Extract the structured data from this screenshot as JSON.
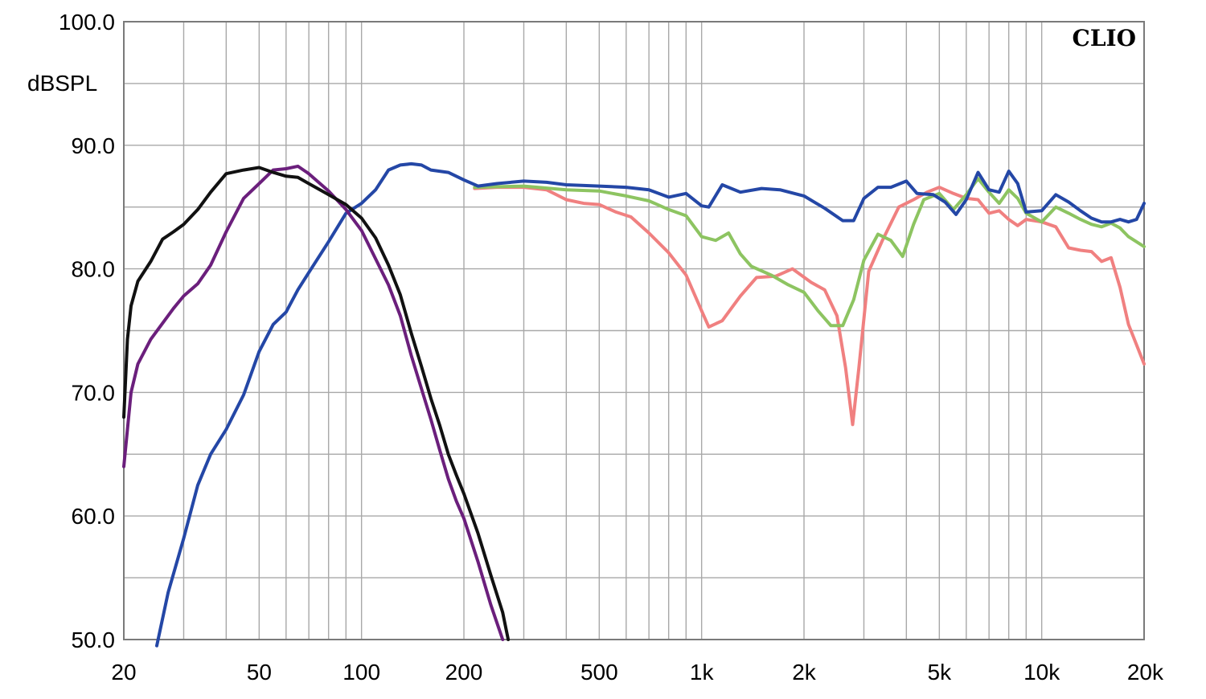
{
  "chart_data": {
    "type": "line",
    "title": "",
    "brand": "CLIO",
    "ylabel": "dBSPL",
    "xlabel": "",
    "x_scale": "log",
    "xlim": [
      20,
      20000
    ],
    "ylim": [
      50,
      100
    ],
    "grid": true,
    "legend": "none",
    "y_ticks": [
      {
        "value": 50,
        "label": "50.0"
      },
      {
        "value": 60,
        "label": "60.0"
      },
      {
        "value": 70,
        "label": "70.0"
      },
      {
        "value": 80,
        "label": "80.0"
      },
      {
        "value": 90,
        "label": "90.0"
      },
      {
        "value": 100,
        "label": "100.0"
      }
    ],
    "x_ticks": [
      {
        "value": 20,
        "label": "20"
      },
      {
        "value": 50,
        "label": "50"
      },
      {
        "value": 100,
        "label": "100"
      },
      {
        "value": 200,
        "label": "200"
      },
      {
        "value": 500,
        "label": "500"
      },
      {
        "value": 1000,
        "label": "1k"
      },
      {
        "value": 2000,
        "label": "2k"
      },
      {
        "value": 5000,
        "label": "5k"
      },
      {
        "value": 10000,
        "label": "10k"
      },
      {
        "value": 20000,
        "label": "20k"
      }
    ],
    "series": [
      {
        "color": "#f08080",
        "points": [
          [
            215,
            86.5
          ],
          [
            250,
            86.6
          ],
          [
            300,
            86.6
          ],
          [
            350,
            86.4
          ],
          [
            400,
            85.6
          ],
          [
            450,
            85.3
          ],
          [
            500,
            85.2
          ],
          [
            560,
            84.6
          ],
          [
            620,
            84.2
          ],
          [
            700,
            82.9
          ],
          [
            800,
            81.3
          ],
          [
            900,
            79.5
          ],
          [
            1000,
            76.6
          ],
          [
            1050,
            75.3
          ],
          [
            1150,
            75.8
          ],
          [
            1300,
            77.8
          ],
          [
            1450,
            79.3
          ],
          [
            1650,
            79.4
          ],
          [
            1850,
            80.0
          ],
          [
            2100,
            78.9
          ],
          [
            2300,
            78.3
          ],
          [
            2500,
            76.2
          ],
          [
            2650,
            72.0
          ],
          [
            2780,
            67.4
          ],
          [
            2900,
            72.0
          ],
          [
            3100,
            79.8
          ],
          [
            3400,
            82.3
          ],
          [
            3800,
            85.0
          ],
          [
            4200,
            85.6
          ],
          [
            4600,
            86.2
          ],
          [
            5000,
            86.6
          ],
          [
            5500,
            86.1
          ],
          [
            6000,
            85.7
          ],
          [
            6500,
            85.6
          ],
          [
            7000,
            84.5
          ],
          [
            7500,
            84.7
          ],
          [
            8000,
            84.0
          ],
          [
            8500,
            83.5
          ],
          [
            9000,
            84.0
          ],
          [
            10000,
            83.8
          ],
          [
            11000,
            83.4
          ],
          [
            12000,
            81.7
          ],
          [
            13000,
            81.5
          ],
          [
            14000,
            81.4
          ],
          [
            15000,
            80.6
          ],
          [
            16000,
            80.9
          ],
          [
            17000,
            78.5
          ],
          [
            18000,
            75.5
          ],
          [
            20000,
            72.3
          ]
        ]
      },
      {
        "color": "#8dc461",
        "points": [
          [
            215,
            86.6
          ],
          [
            300,
            86.7
          ],
          [
            400,
            86.4
          ],
          [
            500,
            86.3
          ],
          [
            600,
            85.9
          ],
          [
            700,
            85.5
          ],
          [
            800,
            84.8
          ],
          [
            900,
            84.3
          ],
          [
            1000,
            82.6
          ],
          [
            1100,
            82.3
          ],
          [
            1200,
            82.9
          ],
          [
            1300,
            81.2
          ],
          [
            1400,
            80.2
          ],
          [
            1600,
            79.5
          ],
          [
            1800,
            78.7
          ],
          [
            2000,
            78.1
          ],
          [
            2200,
            76.6
          ],
          [
            2400,
            75.4
          ],
          [
            2600,
            75.4
          ],
          [
            2800,
            77.5
          ],
          [
            3000,
            80.7
          ],
          [
            3300,
            82.8
          ],
          [
            3600,
            82.3
          ],
          [
            3900,
            81.0
          ],
          [
            4200,
            83.6
          ],
          [
            4500,
            85.6
          ],
          [
            5000,
            86.1
          ],
          [
            5500,
            84.8
          ],
          [
            6000,
            86.0
          ],
          [
            6500,
            87.3
          ],
          [
            7000,
            86.2
          ],
          [
            7500,
            85.3
          ],
          [
            8000,
            86.4
          ],
          [
            8500,
            85.7
          ],
          [
            9000,
            84.5
          ],
          [
            10000,
            83.8
          ],
          [
            11000,
            85.0
          ],
          [
            12000,
            84.5
          ],
          [
            13000,
            84.0
          ],
          [
            14000,
            83.6
          ],
          [
            15000,
            83.4
          ],
          [
            16000,
            83.7
          ],
          [
            17000,
            83.3
          ],
          [
            18000,
            82.6
          ],
          [
            20000,
            81.8
          ]
        ]
      },
      {
        "color": "#2447a6",
        "points": [
          [
            25,
            49.5
          ],
          [
            27,
            53.8
          ],
          [
            30,
            58.2
          ],
          [
            33,
            62.5
          ],
          [
            36,
            65.0
          ],
          [
            40,
            67.0
          ],
          [
            45,
            69.8
          ],
          [
            50,
            73.3
          ],
          [
            55,
            75.5
          ],
          [
            60,
            76.5
          ],
          [
            65,
            78.3
          ],
          [
            70,
            79.7
          ],
          [
            80,
            82.2
          ],
          [
            90,
            84.5
          ],
          [
            100,
            85.3
          ],
          [
            110,
            86.4
          ],
          [
            120,
            88.0
          ],
          [
            130,
            88.4
          ],
          [
            140,
            88.5
          ],
          [
            150,
            88.4
          ],
          [
            160,
            88.0
          ],
          [
            180,
            87.8
          ],
          [
            200,
            87.2
          ],
          [
            220,
            86.7
          ],
          [
            250,
            86.9
          ],
          [
            300,
            87.1
          ],
          [
            350,
            87.0
          ],
          [
            400,
            86.8
          ],
          [
            500,
            86.7
          ],
          [
            600,
            86.6
          ],
          [
            700,
            86.4
          ],
          [
            800,
            85.8
          ],
          [
            900,
            86.1
          ],
          [
            1000,
            85.1
          ],
          [
            1050,
            85.0
          ],
          [
            1150,
            86.8
          ],
          [
            1300,
            86.2
          ],
          [
            1500,
            86.5
          ],
          [
            1700,
            86.4
          ],
          [
            2000,
            85.9
          ],
          [
            2300,
            84.9
          ],
          [
            2600,
            83.9
          ],
          [
            2800,
            83.9
          ],
          [
            3000,
            85.7
          ],
          [
            3300,
            86.6
          ],
          [
            3600,
            86.6
          ],
          [
            4000,
            87.1
          ],
          [
            4300,
            86.1
          ],
          [
            4800,
            86.0
          ],
          [
            5200,
            85.4
          ],
          [
            5600,
            84.4
          ],
          [
            6000,
            85.6
          ],
          [
            6500,
            87.8
          ],
          [
            7000,
            86.4
          ],
          [
            7500,
            86.2
          ],
          [
            8000,
            87.9
          ],
          [
            8500,
            86.9
          ],
          [
            9000,
            84.6
          ],
          [
            10000,
            84.7
          ],
          [
            11000,
            86.0
          ],
          [
            12000,
            85.4
          ],
          [
            13000,
            84.7
          ],
          [
            14000,
            84.1
          ],
          [
            15000,
            83.8
          ],
          [
            16000,
            83.8
          ],
          [
            17000,
            84.0
          ],
          [
            18000,
            83.8
          ],
          [
            19000,
            84.0
          ],
          [
            20000,
            85.3
          ]
        ]
      },
      {
        "color": "#6b1f7c",
        "points": [
          [
            20,
            64.0
          ],
          [
            21,
            70.0
          ],
          [
            22,
            72.3
          ],
          [
            24,
            74.3
          ],
          [
            26,
            75.6
          ],
          [
            28,
            76.8
          ],
          [
            30,
            77.8
          ],
          [
            33,
            78.8
          ],
          [
            36,
            80.3
          ],
          [
            40,
            83.0
          ],
          [
            45,
            85.7
          ],
          [
            50,
            86.9
          ],
          [
            55,
            88.0
          ],
          [
            60,
            88.1
          ],
          [
            65,
            88.3
          ],
          [
            70,
            87.7
          ],
          [
            80,
            86.3
          ],
          [
            90,
            84.8
          ],
          [
            100,
            83.1
          ],
          [
            110,
            80.8
          ],
          [
            120,
            78.7
          ],
          [
            130,
            76.2
          ],
          [
            140,
            73.0
          ],
          [
            150,
            70.3
          ],
          [
            160,
            67.8
          ],
          [
            170,
            65.3
          ],
          [
            180,
            63.0
          ],
          [
            190,
            61.2
          ],
          [
            200,
            59.8
          ],
          [
            220,
            56.3
          ],
          [
            240,
            52.8
          ],
          [
            260,
            50.0
          ]
        ]
      },
      {
        "color": "#111111",
        "points": [
          [
            20,
            68.0
          ],
          [
            20.5,
            74.3
          ],
          [
            21,
            77.0
          ],
          [
            22,
            79.0
          ],
          [
            24,
            80.6
          ],
          [
            26,
            82.4
          ],
          [
            28,
            83.0
          ],
          [
            30,
            83.6
          ],
          [
            33,
            84.8
          ],
          [
            36,
            86.2
          ],
          [
            40,
            87.7
          ],
          [
            45,
            88.0
          ],
          [
            50,
            88.2
          ],
          [
            55,
            87.8
          ],
          [
            60,
            87.5
          ],
          [
            65,
            87.4
          ],
          [
            70,
            86.9
          ],
          [
            80,
            86.0
          ],
          [
            90,
            85.2
          ],
          [
            100,
            84.1
          ],
          [
            110,
            82.5
          ],
          [
            120,
            80.3
          ],
          [
            130,
            77.9
          ],
          [
            140,
            74.8
          ],
          [
            150,
            72.1
          ],
          [
            160,
            69.5
          ],
          [
            170,
            67.3
          ],
          [
            180,
            65.0
          ],
          [
            190,
            63.3
          ],
          [
            200,
            61.8
          ],
          [
            220,
            58.6
          ],
          [
            240,
            55.2
          ],
          [
            260,
            52.2
          ],
          [
            270,
            50.0
          ]
        ]
      }
    ]
  }
}
